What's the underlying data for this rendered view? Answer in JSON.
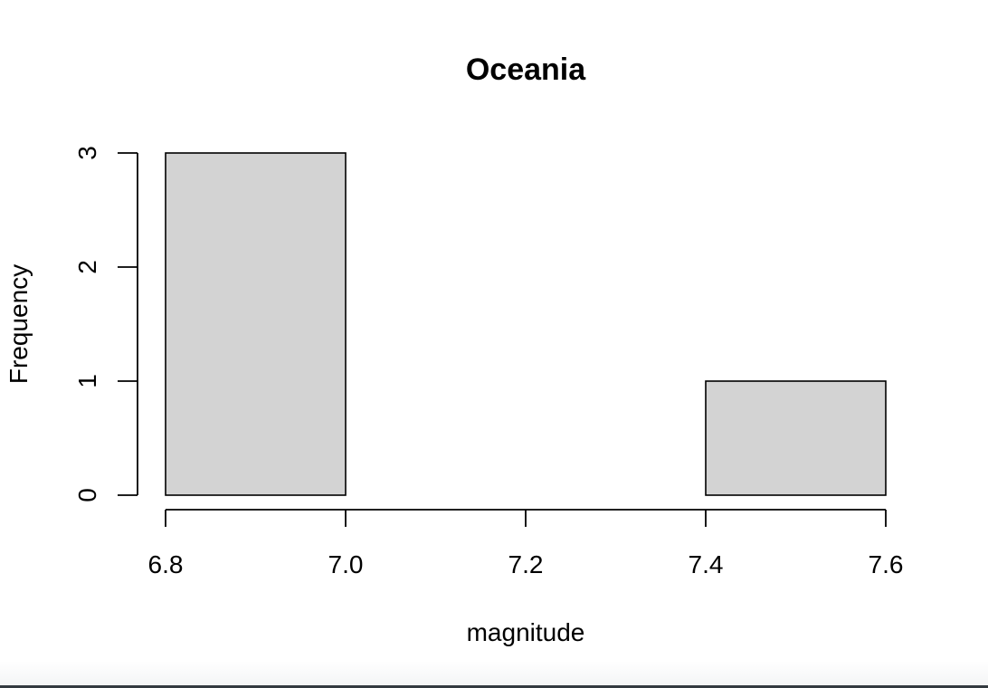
{
  "chart_data": {
    "type": "bar",
    "title": "Oceania",
    "xlabel": "magnitude",
    "ylabel": "Frequency",
    "bins": [
      {
        "x0": 6.8,
        "x1": 7.0,
        "count": 3
      },
      {
        "x0": 7.0,
        "x1": 7.2,
        "count": 0
      },
      {
        "x0": 7.2,
        "x1": 7.4,
        "count": 0
      },
      {
        "x0": 7.4,
        "x1": 7.6,
        "count": 1
      }
    ],
    "xlim": [
      6.8,
      7.6
    ],
    "ylim": [
      0,
      3
    ],
    "x_ticks": [
      6.8,
      7.0,
      7.2,
      7.4,
      7.6
    ],
    "x_tick_labels": [
      "6.8",
      "7.0",
      "7.2",
      "7.4",
      "7.6"
    ],
    "y_ticks": [
      0,
      1,
      2,
      3
    ],
    "y_tick_labels": [
      "0",
      "1",
      "2",
      "3"
    ],
    "grid": false,
    "colors": {
      "bar_fill": "#d3d3d3",
      "bar_stroke": "#000000"
    }
  }
}
